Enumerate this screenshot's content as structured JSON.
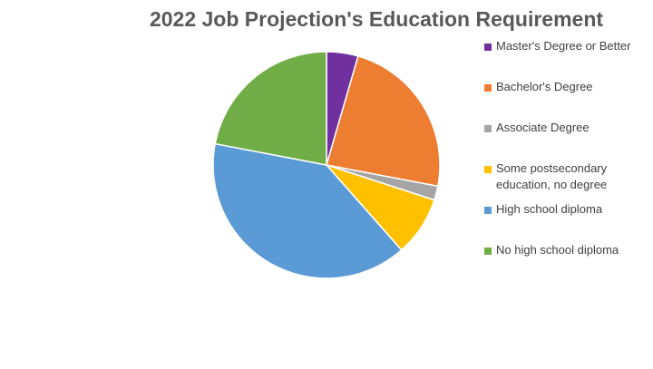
{
  "chart_data": {
    "type": "pie",
    "title": "2022 Job Projection's Education Requirement",
    "categories": [
      "Master's Degree or Better",
      "Bachelor's Degree",
      "Associate Degree",
      "Some postsecondary education, no degree",
      "High school diploma",
      "No high school diploma"
    ],
    "values": [
      4.5,
      23.5,
      2.0,
      8.5,
      39.5,
      22.0
    ],
    "colors": [
      "#7030A0",
      "#ED7D31",
      "#A5A5A5",
      "#FFC000",
      "#5B9BD5",
      "#70AD47"
    ],
    "start_angle_deg": 0,
    "direction": "clockwise",
    "legend_position": "right"
  },
  "legend": {
    "items": [
      {
        "label": "Master's Degree or Better",
        "color": "#7030A0"
      },
      {
        "label": "Bachelor's Degree",
        "color": "#ED7D31"
      },
      {
        "label": "Associate Degree",
        "color": "#A5A5A5"
      },
      {
        "label": "Some postsecondary education, no degree",
        "color": "#FFC000"
      },
      {
        "label": "High school diploma",
        "color": "#5B9BD5"
      },
      {
        "label": "No high school diploma",
        "color": "#70AD47"
      }
    ]
  }
}
